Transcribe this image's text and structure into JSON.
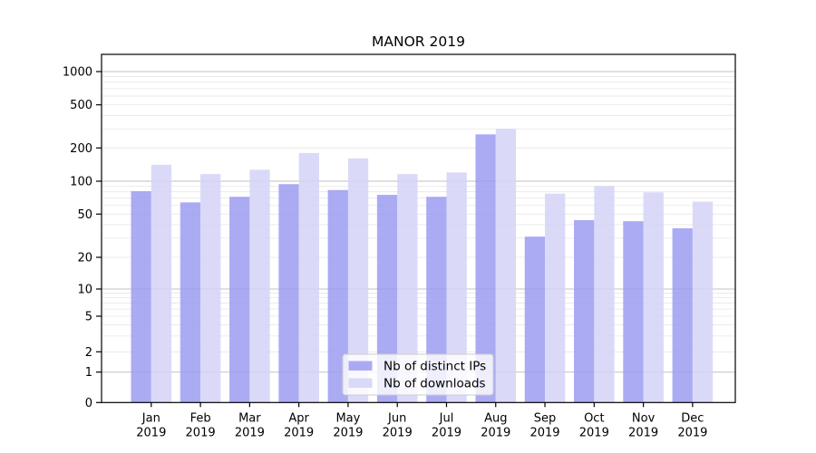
{
  "chart_data": {
    "type": "bar",
    "title": "MANOR 2019",
    "categories": [
      {
        "month": "Jan",
        "year": "2019"
      },
      {
        "month": "Feb",
        "year": "2019"
      },
      {
        "month": "Mar",
        "year": "2019"
      },
      {
        "month": "Apr",
        "year": "2019"
      },
      {
        "month": "May",
        "year": "2019"
      },
      {
        "month": "Jun",
        "year": "2019"
      },
      {
        "month": "Jul",
        "year": "2019"
      },
      {
        "month": "Aug",
        "year": "2019"
      },
      {
        "month": "Sep",
        "year": "2019"
      },
      {
        "month": "Oct",
        "year": "2019"
      },
      {
        "month": "Nov",
        "year": "2019"
      },
      {
        "month": "Dec",
        "year": "2019"
      }
    ],
    "series": [
      {
        "name": "Nb of distinct IPs",
        "color": "#9c9cf1",
        "values": [
          81,
          64,
          72,
          94,
          83,
          75,
          72,
          267,
          31,
          44,
          43,
          37
        ]
      },
      {
        "name": "Nb of downloads",
        "color": "#d3d3f7",
        "values": [
          141,
          116,
          127,
          180,
          161,
          116,
          120,
          300,
          77,
          90,
          79,
          65
        ]
      }
    ],
    "y_axis": {
      "ticks": [
        0,
        1,
        2,
        5,
        10,
        20,
        50,
        100,
        200,
        500,
        1000
      ],
      "scale": "symlog",
      "ylim": [
        0,
        1430
      ]
    },
    "xlabel": "",
    "ylabel": "",
    "legend": {
      "position": "lower center inside plot"
    },
    "grid": {
      "enabled": true,
      "major_color": "#c2c2c2",
      "minor_color": "#e7e7e7"
    },
    "spine_color": "#000000",
    "bar_opacity": 0.85
  }
}
